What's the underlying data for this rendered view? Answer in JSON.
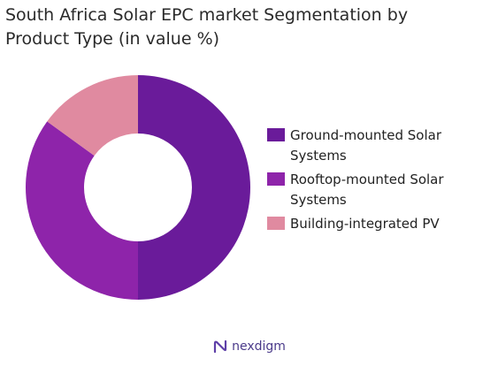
{
  "chart_data": {
    "type": "pie",
    "title": "South Africa Solar EPC market Segmentation by\nProduct Type (in value %)",
    "categories": [
      "Ground-mounted Solar Systems",
      "Rooftop-mounted Solar Systems",
      "Building-integrated PV"
    ],
    "values": [
      50,
      35,
      15
    ],
    "colors": [
      "#6a1b9a",
      "#8e24aa",
      "#e08aa0"
    ],
    "legend_labels": [
      "Ground-mounted Solar\nSystems",
      "Rooftop-mounted Solar\nSystems",
      "Building-integrated PV"
    ],
    "legend_position": "right",
    "donut": true
  },
  "brand": {
    "name": "nexdigm",
    "icon": "nexdigm-logo-icon"
  }
}
